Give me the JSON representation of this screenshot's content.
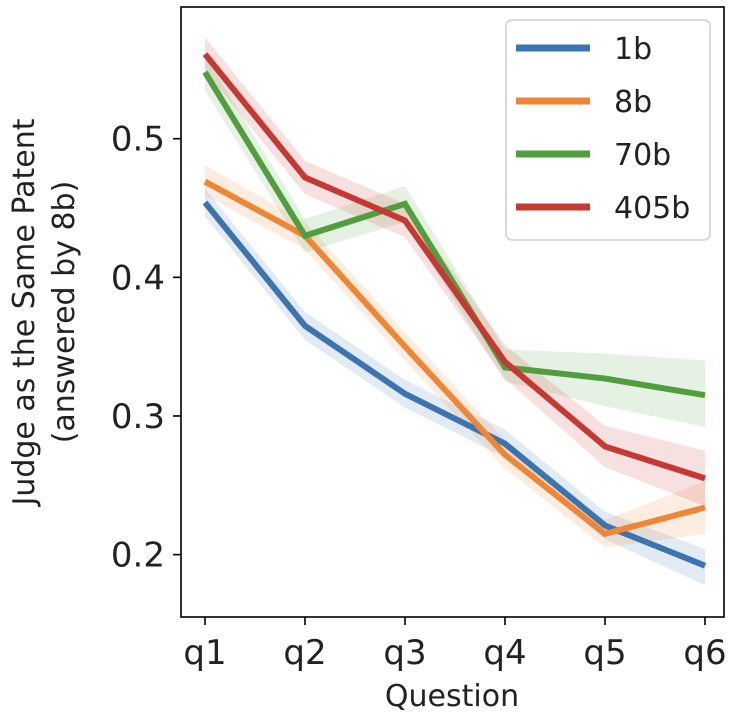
{
  "chart_data": {
    "type": "line",
    "title": "",
    "xlabel": "Question",
    "ylabel": [
      "Judge as the Same Patent",
      "(answered by 8b)"
    ],
    "categories": [
      "q1",
      "q2",
      "q3",
      "q4",
      "q5",
      "q6"
    ],
    "ylim": [
      0.155,
      0.595
    ],
    "yticks": [
      0.2,
      0.3,
      0.4,
      0.5
    ],
    "ytick_labels": [
      "0.2",
      "0.3",
      "0.4",
      "0.5"
    ],
    "grid": false,
    "legend_position": "top-right",
    "series": [
      {
        "name": "1b",
        "color": "#3b75af",
        "values": [
          0.454,
          0.365,
          0.316,
          0.28,
          0.221,
          0.192
        ],
        "lower": [
          0.444,
          0.355,
          0.306,
          0.27,
          0.211,
          0.178
        ],
        "upper": [
          0.464,
          0.375,
          0.326,
          0.29,
          0.231,
          0.204
        ]
      },
      {
        "name": "8b",
        "color": "#ef8636",
        "values": [
          0.469,
          0.43,
          0.35,
          0.272,
          0.215,
          0.234
        ],
        "lower": [
          0.459,
          0.42,
          0.34,
          0.262,
          0.205,
          0.215
        ],
        "upper": [
          0.481,
          0.44,
          0.36,
          0.282,
          0.225,
          0.253
        ]
      },
      {
        "name": "70b",
        "color": "#519e3e",
        "values": [
          0.548,
          0.43,
          0.453,
          0.335,
          0.327,
          0.315
        ],
        "lower": [
          0.535,
          0.418,
          0.44,
          0.325,
          0.307,
          0.292
        ],
        "upper": [
          0.56,
          0.442,
          0.466,
          0.348,
          0.345,
          0.34
        ]
      },
      {
        "name": "405b",
        "color": "#c53932",
        "values": [
          0.561,
          0.472,
          0.441,
          0.339,
          0.278,
          0.255
        ],
        "lower": [
          0.549,
          0.46,
          0.429,
          0.327,
          0.263,
          0.235
        ],
        "upper": [
          0.573,
          0.484,
          0.453,
          0.351,
          0.293,
          0.275
        ]
      }
    ]
  }
}
